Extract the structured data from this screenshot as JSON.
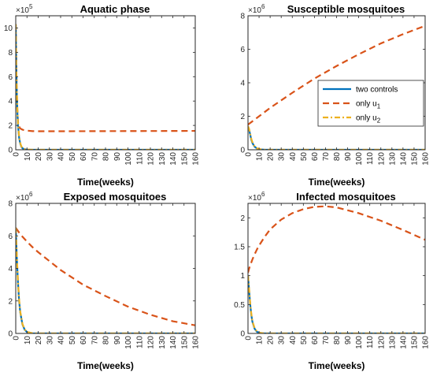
{
  "chart_data": [
    {
      "type": "line",
      "title": "Aquatic phase",
      "xlabel": "Time(weeks)",
      "ylabel": "",
      "multiplier": {
        "base": "×10",
        "exp": "5"
      },
      "xlim": [
        0,
        160
      ],
      "ylim": [
        0,
        11
      ],
      "xticks": [
        0,
        10,
        20,
        30,
        40,
        50,
        60,
        70,
        80,
        90,
        100,
        110,
        120,
        130,
        140,
        150,
        160
      ],
      "yticks": [
        0,
        2,
        4,
        6,
        8,
        10
      ],
      "grid": false,
      "x": [
        0,
        0.5,
        1,
        1.5,
        2,
        3,
        4,
        5,
        6,
        8,
        10,
        15,
        20,
        40,
        80,
        160
      ],
      "series": [
        {
          "name": "two controls",
          "style": "solid",
          "color": "#0072BD",
          "values": [
            10.3,
            6.5,
            4.5,
            3.0,
            2.0,
            1.0,
            0.5,
            0.25,
            0.12,
            0.04,
            0.01,
            0,
            0,
            0,
            0,
            0
          ]
        },
        {
          "name": "only u1",
          "style": "dashed",
          "color": "#D95319",
          "values": [
            10.3,
            7.0,
            4.5,
            3.0,
            2.3,
            1.9,
            1.75,
            1.7,
            1.65,
            1.6,
            1.57,
            1.53,
            1.52,
            1.52,
            1.53,
            1.55
          ]
        },
        {
          "name": "only u2",
          "style": "dashdot",
          "color": "#EDB120",
          "values": [
            10.3,
            6.8,
            4.7,
            3.2,
            2.2,
            1.1,
            0.55,
            0.28,
            0.14,
            0.05,
            0.02,
            0,
            0,
            0,
            0,
            0
          ]
        }
      ]
    },
    {
      "type": "line",
      "title": "Susceptible mosquitoes",
      "xlabel": "Time(weeks)",
      "ylabel": "",
      "multiplier": {
        "base": "×10",
        "exp": "6"
      },
      "xlim": [
        0,
        160
      ],
      "ylim": [
        0,
        8
      ],
      "xticks": [
        0,
        10,
        20,
        30,
        40,
        50,
        60,
        70,
        80,
        90,
        100,
        110,
        120,
        130,
        140,
        150,
        160
      ],
      "yticks": [
        0,
        2,
        4,
        6,
        8
      ],
      "grid": false,
      "x": [
        0,
        1,
        2,
        3,
        4,
        6,
        8,
        10,
        15,
        20,
        40,
        60,
        80,
        100,
        120,
        140,
        160
      ],
      "series": [
        {
          "name": "two controls",
          "style": "solid",
          "color": "#0072BD",
          "values": [
            1.4,
            1.2,
            0.9,
            0.6,
            0.4,
            0.18,
            0.08,
            0.03,
            0,
            0,
            0,
            0,
            0,
            0,
            0,
            0,
            0
          ]
        },
        {
          "name": "only u1",
          "style": "dashed",
          "color": "#D95319",
          "values": [
            1.5,
            1.55,
            1.6,
            1.65,
            1.7,
            1.8,
            1.9,
            2.0,
            2.25,
            2.5,
            3.4,
            4.25,
            5.0,
            5.7,
            6.35,
            6.9,
            7.4
          ]
        },
        {
          "name": "only u2",
          "style": "dashdot",
          "color": "#EDB120",
          "values": [
            1.4,
            1.25,
            0.95,
            0.65,
            0.45,
            0.2,
            0.09,
            0.04,
            0,
            0,
            0,
            0,
            0,
            0,
            0,
            0,
            0
          ]
        }
      ],
      "legend": {
        "position": "right",
        "entries": [
          {
            "label": "two controls",
            "sub": ""
          },
          {
            "label": "only u",
            "sub": "1"
          },
          {
            "label": "only u",
            "sub": "2"
          }
        ]
      }
    },
    {
      "type": "line",
      "title": "Exposed mosquitoes",
      "xlabel": "Time(weeks)",
      "ylabel": "",
      "multiplier": {
        "base": "×10",
        "exp": "6"
      },
      "xlim": [
        0,
        160
      ],
      "ylim": [
        0,
        8
      ],
      "xticks": [
        0,
        10,
        20,
        30,
        40,
        50,
        60,
        70,
        80,
        90,
        100,
        110,
        120,
        130,
        140,
        150,
        160
      ],
      "yticks": [
        0,
        2,
        4,
        6,
        8
      ],
      "grid": false,
      "x": [
        0,
        1,
        2,
        3,
        4,
        6,
        8,
        10,
        15,
        20,
        40,
        60,
        80,
        100,
        120,
        140,
        160
      ],
      "series": [
        {
          "name": "two controls",
          "style": "solid",
          "color": "#0072BD",
          "values": [
            6.5,
            4.6,
            3.1,
            2.0,
            1.3,
            0.55,
            0.22,
            0.09,
            0.01,
            0,
            0,
            0,
            0,
            0,
            0,
            0,
            0
          ]
        },
        {
          "name": "only u1",
          "style": "dashed",
          "color": "#D95319",
          "values": [
            6.5,
            6.4,
            6.3,
            6.2,
            6.1,
            5.95,
            5.8,
            5.65,
            5.3,
            5.0,
            3.9,
            3.0,
            2.3,
            1.65,
            1.15,
            0.75,
            0.5
          ]
        },
        {
          "name": "only u2",
          "style": "dashdot",
          "color": "#EDB120",
          "values": [
            6.5,
            4.7,
            3.2,
            2.1,
            1.35,
            0.58,
            0.24,
            0.1,
            0.01,
            0,
            0,
            0,
            0,
            0,
            0,
            0,
            0
          ]
        }
      ]
    },
    {
      "type": "line",
      "title": "Infected mosquitoes",
      "xlabel": "Time(weeks)",
      "ylabel": "",
      "multiplier": {
        "base": "×10",
        "exp": "6"
      },
      "xlim": [
        0,
        160
      ],
      "ylim": [
        0,
        2.25
      ],
      "xticks": [
        0,
        10,
        20,
        30,
        40,
        50,
        60,
        70,
        80,
        90,
        100,
        110,
        120,
        130,
        140,
        150,
        160
      ],
      "yticks": [
        0,
        0.5,
        1,
        1.5,
        2
      ],
      "grid": false,
      "x": [
        0,
        1,
        2,
        3,
        4,
        6,
        8,
        10,
        15,
        20,
        30,
        40,
        50,
        60,
        70,
        80,
        100,
        120,
        140,
        160
      ],
      "series": [
        {
          "name": "two controls",
          "style": "solid",
          "color": "#0072BD",
          "values": [
            1.0,
            0.75,
            0.5,
            0.32,
            0.2,
            0.08,
            0.03,
            0.01,
            0,
            0,
            0,
            0,
            0,
            0,
            0,
            0,
            0,
            0,
            0,
            0
          ]
        },
        {
          "name": "only u1",
          "style": "dashed",
          "color": "#D95319",
          "values": [
            1.05,
            1.12,
            1.18,
            1.23,
            1.28,
            1.37,
            1.45,
            1.52,
            1.67,
            1.8,
            1.97,
            2.08,
            2.15,
            2.19,
            2.2,
            2.18,
            2.08,
            1.95,
            1.79,
            1.62
          ]
        },
        {
          "name": "only u2",
          "style": "dashdot",
          "color": "#EDB120",
          "values": [
            1.0,
            0.77,
            0.52,
            0.34,
            0.21,
            0.09,
            0.035,
            0.012,
            0,
            0,
            0,
            0,
            0,
            0,
            0,
            0,
            0,
            0,
            0,
            0
          ]
        }
      ]
    }
  ]
}
